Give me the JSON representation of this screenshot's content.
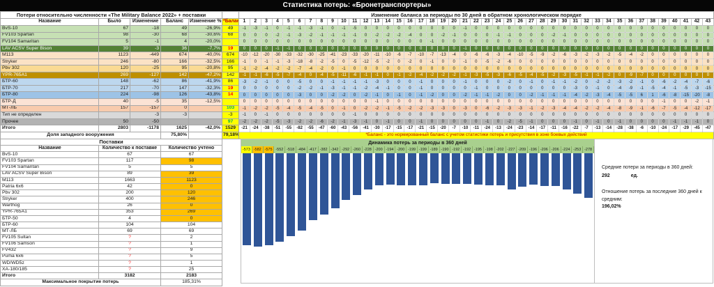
{
  "window_title": "Статистика потерь: «Бронетранспортеры»",
  "loss_table": {
    "title": "Потери относительно численности «The Military Balance 2022» + поставки",
    "col_headers": [
      "Название",
      "Было",
      "Изменение",
      "Баланс",
      "Изменение %"
    ],
    "norm_balance_header": "*Баланс",
    "rows": [
      {
        "name": "BvS-10",
        "was": "67",
        "change": "-18",
        "balance": "49",
        "change_pct": "-26,9%",
        "norm_balance": "49",
        "norm_color": "#1a1a1a",
        "norm_bold": false,
        "bg": "#C6E0B4",
        "fg": "#1a1a1a",
        "bold": false
      },
      {
        "name": "FV103 Spartan",
        "was": "98",
        "change": "-30",
        "balance": "68",
        "change_pct": "-30,6%",
        "norm_balance": "68",
        "norm_color": "#1a1a1a",
        "norm_bold": false,
        "bg": "#C6E0B4",
        "fg": "#1a1a1a",
        "bold": false
      },
      {
        "name": "FV104 Samaritan",
        "was": "5",
        "change": "-1",
        "balance": "4",
        "change_pct": "-20,0%",
        "norm_balance": "",
        "norm_color": "#1a1a1a",
        "norm_bold": false,
        "bg": "#C6E0B4",
        "fg": "#1a1a1a",
        "bold": false
      },
      {
        "name": "LAV ACSV Super Bison",
        "was": "39",
        "change": "-3",
        "balance": "36",
        "change_pct": "-7,7%",
        "norm_balance": "19",
        "norm_color": "#FF0000",
        "norm_bold": true,
        "bg": "#538135",
        "fg": "#ffffff",
        "bold": false
      },
      {
        "name": "M113",
        "was": "1123",
        "change": "-449",
        "balance": "674",
        "change_pct": "-40,0%",
        "norm_balance": "674",
        "norm_color": "#1a1a1a",
        "norm_bold": false,
        "bg": "#FBE2C5",
        "fg": "#1a1a1a",
        "bold": false
      },
      {
        "name": "Stryker",
        "was": "246",
        "change": "-80",
        "balance": "166",
        "change_pct": "-32,5%",
        "norm_balance": "166",
        "norm_color": "#1a1a1a",
        "norm_bold": false,
        "bg": "#FBE2C5",
        "fg": "#1a1a1a",
        "bold": false
      },
      {
        "name": "Pbv 302",
        "was": "120",
        "change": "-25",
        "balance": "95",
        "change_pct": "-20,8%",
        "norm_balance": "95",
        "norm_color": "#1a1a1a",
        "norm_bold": false,
        "bg": "#FADA93",
        "fg": "#1a1a1a",
        "bold": false
      },
      {
        "name": "YPR-765A1",
        "was": "269",
        "change": "-127",
        "balance": "142",
        "change_pct": "-47,2%",
        "norm_balance": "142",
        "norm_color": "#1a1a1a",
        "norm_bold": false,
        "bg": "#BE8F00",
        "fg": "#ffffff",
        "bold": false
      },
      {
        "name": "БТР-60",
        "was": "148",
        "change": "-62",
        "balance": "86",
        "change_pct": "-41,9%",
        "norm_balance": "86",
        "norm_color": "#1a1a1a",
        "norm_bold": false,
        "bg": "#BDD7EE",
        "fg": "#1a1a1a",
        "bold": false
      },
      {
        "name": "БТР-70",
        "was": "217",
        "change": "-70",
        "balance": "147",
        "change_pct": "-32,3%",
        "norm_balance": "19",
        "norm_color": "#FF0000",
        "norm_bold": true,
        "bg": "#BDD7EE",
        "fg": "#1a1a1a",
        "bold": false
      },
      {
        "name": "БТР-80",
        "was": "224",
        "change": "-98",
        "balance": "126",
        "change_pct": "-43,8%",
        "norm_balance": "14",
        "norm_color": "#FF0000",
        "norm_bold": true,
        "bg": "#9DC3E6",
        "fg": "#1a1a1a",
        "bold": false
      },
      {
        "name": "БТР-Д",
        "was": "40",
        "change": "-5",
        "balance": "35",
        "change_pct": "-12,5%",
        "norm_balance": "",
        "norm_color": "#1a1a1a",
        "norm_bold": false,
        "bg": "#FBE3D5",
        "fg": "#1a1a1a",
        "bold": false
      },
      {
        "name": "МТ-ЛБ",
        "was": "157",
        "change": "-157",
        "balance": "0",
        "change_pct": "",
        "norm_balance": "103",
        "norm_color": "#00B050",
        "norm_bold": true,
        "bg": "#F8CBAD",
        "fg": "#1a1a1a",
        "bold": false
      },
      {
        "name": "Тип не определен",
        "was": "",
        "change": "-3",
        "balance": "-3",
        "change_pct": "",
        "norm_balance": "-3",
        "norm_color": "#1a1a1a",
        "norm_bold": false,
        "bg": "#D9D9D9",
        "fg": "#1a1a1a",
        "bold": false
      },
      {
        "name": "Прочее",
        "was": "50",
        "change": "-50",
        "balance": "",
        "change_pct": "",
        "norm_balance": "97",
        "norm_color": "#00B050",
        "norm_bold": true,
        "bg": "#B3B3B3",
        "fg": "#1a1a1a",
        "bold": false
      },
      {
        "name": "Итого",
        "was": "2803",
        "change": "-1178",
        "balance": "1625",
        "change_pct": "-42,0%",
        "norm_balance": "1529",
        "norm_color": "#1a1a1a",
        "norm_bold": true,
        "bg": "#FFFFFF",
        "fg": "#1a1a1a",
        "bold": true
      }
    ],
    "share_row": {
      "label": "Доля западного вооружения",
      "balance_pct": "75,80%",
      "norm_pct": "79,18%"
    }
  },
  "matrix": {
    "title": "Изменение баланса за периоды по 30 дней в обратном хронологическом порядке",
    "period_count": 43,
    "rows": [
      [
        -1,
        -3,
        -1,
        0,
        -1,
        -1,
        -3,
        -1,
        0,
        -1,
        -5,
        0,
        0,
        0,
        0,
        0,
        0,
        0,
        0,
        0,
        -1,
        0,
        0,
        0,
        0,
        0,
        0,
        0,
        0,
        0,
        0,
        0,
        0,
        0,
        0,
        0,
        0,
        0,
        0,
        0,
        0,
        0,
        0
      ],
      [
        0,
        0,
        0,
        -2,
        -1,
        -3,
        -2,
        -1,
        -1,
        -1,
        -1,
        0,
        -2,
        -2,
        -2,
        -4,
        0,
        0,
        -2,
        -1,
        0,
        0,
        0,
        -1,
        -1,
        0,
        0,
        0,
        -2,
        -1,
        0,
        0,
        0,
        0,
        0,
        0,
        0,
        0,
        0,
        0,
        0,
        0,
        0
      ],
      [
        0,
        0,
        0,
        0,
        0,
        0,
        0,
        0,
        0,
        0,
        0,
        0,
        0,
        0,
        0,
        0,
        0,
        -1,
        0,
        0,
        0,
        0,
        0,
        0,
        0,
        0,
        0,
        0,
        0,
        0,
        0,
        0,
        0,
        0,
        0,
        0,
        0,
        0,
        0,
        0,
        0,
        0,
        0
      ],
      [
        0,
        0,
        0,
        -1,
        -1,
        0,
        0,
        0,
        0,
        0,
        0,
        0,
        0,
        0,
        0,
        0,
        0,
        0,
        0,
        0,
        -1,
        0,
        0,
        0,
        0,
        0,
        0,
        0,
        0,
        0,
        0,
        0,
        0,
        0,
        0,
        0,
        0,
        0,
        0,
        0,
        0,
        0,
        0
      ],
      [
        -10,
        -12,
        -20,
        -30,
        -33,
        -32,
        -30,
        -25,
        -41,
        -23,
        -33,
        -20,
        -11,
        -10,
        -6,
        -7,
        -10,
        -7,
        -13,
        -4,
        0,
        -6,
        -6,
        -3,
        -4,
        -10,
        -5,
        -9,
        -2,
        -6,
        -3,
        -2,
        -3,
        -2,
        -5,
        -4,
        -2,
        0,
        0,
        0,
        0,
        0,
        0
      ],
      [
        -1,
        0,
        -1,
        -1,
        -3,
        -18,
        -8,
        -2,
        -5,
        0,
        -5,
        -12,
        -5,
        -2,
        0,
        -2,
        0,
        -1,
        0,
        0,
        -1,
        0,
        -5,
        -2,
        -6,
        0,
        0,
        0,
        0,
        0,
        0,
        0,
        0,
        0,
        0,
        0,
        0,
        0,
        0,
        0,
        0,
        0,
        0
      ],
      [
        -1,
        -2,
        -4,
        -2,
        -2,
        -7,
        -4,
        -2,
        0,
        -1,
        0,
        0,
        0,
        0,
        0,
        0,
        0,
        0,
        0,
        0,
        0,
        0,
        0,
        0,
        0,
        0,
        0,
        0,
        0,
        0,
        0,
        0,
        0,
        0,
        0,
        0,
        0,
        0,
        0,
        0,
        0,
        0,
        0
      ],
      [
        -1,
        -1,
        -6,
        -5,
        -7,
        -4,
        0,
        -4,
        -5,
        -11,
        -6,
        -1,
        -1,
        0,
        -1,
        -2,
        -4,
        -2,
        -2,
        -2,
        -1,
        -3,
        -5,
        -3,
        -6,
        -5,
        -4,
        -5,
        -2,
        -3,
        -5,
        -1,
        -1,
        -2,
        0,
        -9,
        -7,
        0,
        0,
        0,
        0,
        0,
        0
      ],
      [
        -3,
        -2,
        -1,
        0,
        0,
        -5,
        0,
        0,
        -1,
        -1,
        -1,
        -1,
        -3,
        0,
        0,
        0,
        -1,
        0,
        0,
        0,
        -1,
        0,
        0,
        0,
        -2,
        0,
        -1,
        0,
        -1,
        -1,
        -2,
        0,
        -2,
        -2,
        -3,
        -2,
        -1,
        0,
        -6,
        -2,
        -4,
        -7,
        -6
      ],
      [
        0,
        0,
        0,
        0,
        0,
        -2,
        -2,
        -1,
        -3,
        -1,
        -1,
        -2,
        -4,
        -1,
        0,
        0,
        -1,
        0,
        0,
        0,
        0,
        -1,
        0,
        0,
        0,
        0,
        0,
        0,
        0,
        0,
        -3,
        0,
        -1,
        0,
        -4,
        -9,
        -1,
        -5,
        -4,
        -1,
        -5,
        -3,
        -15
      ],
      [
        0,
        0,
        0,
        0,
        0,
        -3,
        0,
        0,
        -2,
        -2,
        0,
        -2,
        -1,
        0,
        -1,
        0,
        -1,
        -2,
        0,
        0,
        -2,
        -1,
        -1,
        -2,
        0,
        0,
        -2,
        -1,
        -1,
        -1,
        -4,
        -2,
        -3,
        -4,
        -5,
        -5,
        6,
        1,
        -6,
        -8,
        -15,
        -20,
        -8
      ],
      [
        0,
        0,
        0,
        0,
        0,
        0,
        0,
        0,
        0,
        0,
        0,
        0,
        -1,
        0,
        0,
        0,
        0,
        0,
        0,
        0,
        0,
        0,
        0,
        0,
        0,
        0,
        0,
        0,
        0,
        0,
        0,
        0,
        0,
        0,
        0,
        0,
        0,
        0,
        -1,
        0,
        0,
        -2,
        -1
      ],
      [
        -1,
        -2,
        -2,
        -5,
        -4,
        -5,
        -4,
        -5,
        0,
        -1,
        0,
        -2,
        -2,
        -1,
        -5,
        -2,
        -2,
        -3,
        -3,
        0,
        -3,
        0,
        -6,
        -2,
        -3,
        -3,
        -1,
        -2,
        -3,
        -4,
        -4,
        -2,
        -2,
        -4,
        -8,
        -9,
        -1,
        -6,
        -7,
        -5,
        -4,
        -12,
        -17
      ],
      [
        -1,
        0,
        -1,
        0,
        0,
        0,
        0,
        0,
        0,
        0,
        -1,
        0,
        0,
        0,
        0,
        0,
        0,
        0,
        0,
        0,
        0,
        0,
        0,
        0,
        0,
        0,
        0,
        0,
        0,
        0,
        0,
        0,
        0,
        0,
        0,
        0,
        0,
        0,
        0,
        0,
        0,
        0,
        0
      ],
      [
        -2,
        -2,
        -2,
        -5,
        -3,
        -2,
        -2,
        -6,
        -2,
        -1,
        -3,
        -1,
        0,
        -1,
        0,
        0,
        -1,
        0,
        0,
        0,
        0,
        0,
        -1,
        0,
        -2,
        -5,
        -1,
        0,
        0,
        0,
        -1,
        0,
        -1,
        0,
        -1,
        0,
        0,
        0,
        0,
        -1,
        -1,
        -1,
        0
      ],
      [
        -21,
        -24,
        -38,
        -51,
        -55,
        -82,
        -55,
        -47,
        -60,
        -43,
        -56,
        -41,
        -30,
        -17,
        -15,
        -17,
        -21,
        -15,
        -20,
        -7,
        -10,
        -11,
        -24,
        -13,
        -24,
        -23,
        -14,
        -17,
        -11,
        -16,
        -22,
        -7,
        -13,
        -14,
        -28,
        -38,
        -6,
        -10,
        -24,
        -17,
        -29,
        -45,
        -47
      ]
    ],
    "footnote": "*Баланс - это нормированный баланс с учетом статистики потерь и присутствия в зоне боевых действий"
  },
  "supplies": {
    "title": "Поставки",
    "col_headers": [
      "Название",
      "Количество к поставке",
      "Количество учтено"
    ],
    "rows": [
      {
        "name": "BvS-10",
        "to_supply": "67",
        "counted": "67",
        "counted_hl": false,
        "supply_unknown": false
      },
      {
        "name": "FV103 Spartan",
        "to_supply": "117",
        "counted": "98",
        "counted_hl": true,
        "supply_unknown": false
      },
      {
        "name": "FV104 Samaritan",
        "to_supply": "5",
        "counted": "5",
        "counted_hl": false,
        "supply_unknown": false
      },
      {
        "name": "LAV ACSV Super Bison",
        "to_supply": "89",
        "counted": "39",
        "counted_hl": true,
        "supply_unknown": false
      },
      {
        "name": "M113",
        "to_supply": "1663",
        "counted": "1123",
        "counted_hl": true,
        "supply_unknown": false
      },
      {
        "name": "Patria 6x6",
        "to_supply": "42",
        "counted": "0",
        "counted_hl": true,
        "supply_unknown": false
      },
      {
        "name": "Pbv 302",
        "to_supply": "200",
        "counted": "120",
        "counted_hl": true,
        "supply_unknown": false
      },
      {
        "name": "Stryker",
        "to_supply": "400",
        "counted": "246",
        "counted_hl": true,
        "supply_unknown": false
      },
      {
        "name": "Warthog",
        "to_supply": "26",
        "counted": "0",
        "counted_hl": true,
        "supply_unknown": false
      },
      {
        "name": "YPR-765A1",
        "to_supply": "353",
        "counted": "269",
        "counted_hl": true,
        "supply_unknown": false
      },
      {
        "name": "БТР-50",
        "to_supply": "4",
        "counted": "0",
        "counted_hl": true,
        "supply_unknown": false
      },
      {
        "name": "БТР-60",
        "to_supply": "104",
        "counted": "104",
        "counted_hl": false,
        "supply_unknown": false
      },
      {
        "name": "МТ-ЛБ",
        "to_supply": "69",
        "counted": "69",
        "counted_hl": false,
        "supply_unknown": false
      },
      {
        "name": "FV105 Sultan",
        "to_supply": "?",
        "counted": "2",
        "counted_hl": false,
        "supply_unknown": true
      },
      {
        "name": "FV106 Samson",
        "to_supply": "?",
        "counted": "1",
        "counted_hl": false,
        "supply_unknown": true
      },
      {
        "name": "FV432",
        "to_supply": "?",
        "counted": "9",
        "counted_hl": false,
        "supply_unknown": true
      },
      {
        "name": "Puma 6x6",
        "to_supply": "?",
        "counted": "5",
        "counted_hl": false,
        "supply_unknown": true
      },
      {
        "name": "WD/WD5z",
        "to_supply": "?",
        "counted": "1",
        "counted_hl": false,
        "supply_unknown": true
      },
      {
        "name": "XA-180/185",
        "to_supply": "?",
        "counted": "25",
        "counted_hl": false,
        "supply_unknown": true
      }
    ],
    "total_row": {
      "name": "Итого",
      "to_supply": "3182",
      "counted": "2183"
    },
    "coverage_row": {
      "label": "Максимальное покрытие потерь",
      "value": "185,31%"
    }
  },
  "chart_data": {
    "type": "bar",
    "title": "Динамика потерь за периоды в 360 дней",
    "values": [
      -573,
      -582,
      -575,
      -552,
      -518,
      -484,
      -417,
      -382,
      -342,
      -292,
      -260,
      -228,
      -200,
      -194,
      -200,
      -199,
      -199,
      -189,
      -190,
      -192,
      -192,
      -195,
      -198,
      -202,
      -227,
      -209,
      -196,
      -206,
      -206,
      -224,
      -253,
      -278
    ],
    "bar_color": "#2F5597",
    "label_bg_default": "#A9D08E",
    "label_bg_highlights": {
      "0": "#FFFF00",
      "1": "#FFC000",
      "2": "#FFC000"
    },
    "xlabel": "",
    "ylabel": "",
    "grid": false,
    "legend": false
  },
  "summary_panel": {
    "avg_label": "Средние потери за периоды в 360 дней:",
    "avg_value": "292",
    "avg_unit": "ед.",
    "ratio_label": "Отношение потерь за последние 360 дней к средним:",
    "ratio_value": "196,02%"
  }
}
